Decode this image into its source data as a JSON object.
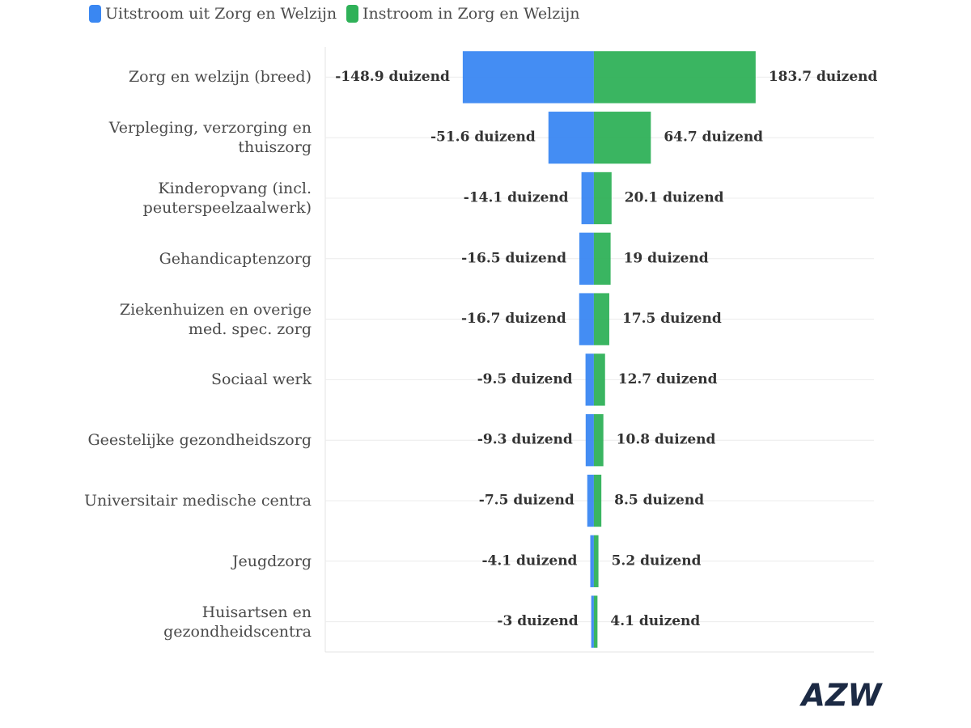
{
  "chart_data": {
    "type": "diverging-bar",
    "categories": [
      "Zorg en welzijn (breed)",
      "Verpleging, verzorging en thuiszorg",
      "Kinderopvang (incl. peuterspeelzaalwerk)",
      "Gehandicaptenzorg",
      "Ziekenhuizen en overige med. spec. zorg",
      "Sociaal werk",
      "Geestelijke gezondheidszorg",
      "Universitair medische centra",
      "Jeugdzorg",
      "Huisartsen en gezondheidscentra"
    ],
    "series": [
      {
        "name": "Uitstroom uit Zorg en Welzijn",
        "color": "#3a87f2",
        "values": [
          -148.9,
          -51.6,
          -14.1,
          -16.5,
          -16.7,
          -9.5,
          -9.3,
          -7.5,
          -4.1,
          -3
        ],
        "value_labels": [
          "-148.9 duizend",
          "-51.6 duizend",
          "-14.1 duizend",
          "-16.5 duizend",
          "-16.7 duizend",
          "-9.5 duizend",
          "-9.3 duizend",
          "-7.5 duizend",
          "-4.1 duizend",
          "-3 duizend"
        ]
      },
      {
        "name": "Instroom in Zorg en Welzijn",
        "color": "#2fb158",
        "values": [
          183.7,
          64.7,
          20.1,
          19,
          17.5,
          12.7,
          10.8,
          8.5,
          5.2,
          4.1
        ],
        "value_labels": [
          "183.7 duizend",
          "64.7 duizend",
          "20.1 duizend",
          "19 duizend",
          "17.5 duizend",
          "12.7 duizend",
          "10.8 duizend",
          "8.5 duizend",
          "5.2 duizend",
          "4.1 duizend"
        ]
      }
    ],
    "xlim": [
      -305,
      318
    ],
    "grid": true,
    "legend": "top-left"
  },
  "logo": "AZW"
}
